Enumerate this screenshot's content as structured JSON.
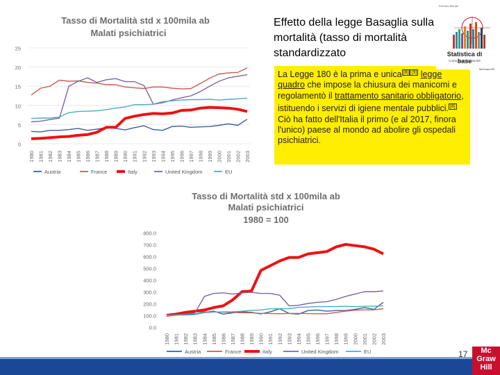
{
  "slide": {
    "title": "Effetto della legge Basaglia sulla mortalità (tasso di mortalità standardizzato",
    "page_number": "17",
    "publisher_logo": [
      "Mc",
      "Graw",
      "Hill"
    ]
  },
  "text_box": {
    "p1": "La Legge 180 è la prima e unica",
    "ref1": "[8]",
    "ref2": "[9]",
    "p2": " ",
    "link1": "legge quadro",
    "p3": " che impose la chiusura dei manicomi e regolamentò il ",
    "link2": "trattamento sanitario obbligatorio",
    "p4": ", istituendo i servizi di igiene mentale pubblici.",
    "ref3": "[8]",
    "p5": " Ciò ha fatto dell'Italia il primo (e al 2017, finora l'unico) paese al mondo ad abolire gli ospedali psichiatrici."
  },
  "book_cover": {
    "author": "Ferrucio Monali",
    "title": "Statistica di base",
    "subtitle": "Come, quando, perché",
    "publisher": "McGraw-Hill"
  },
  "colors": {
    "Austria": "#3a5f9a",
    "France": "#cf5a4d",
    "Italy": "#ee1111",
    "United Kingdom": "#8064a2",
    "EU": "#4bacc6",
    "yellow": "#ffee00",
    "footer": "#1a4796"
  },
  "chart_data": [
    {
      "type": "line",
      "title": "Tasso di Mortalità std x 100mila ab",
      "subtitle": "Malati psichiatrici",
      "xlabel": "",
      "ylabel": "",
      "ylim": [
        0,
        25
      ],
      "yticks": [
        0,
        5,
        10,
        15,
        20,
        25
      ],
      "x": [
        "1980",
        "1981",
        "1982",
        "1983",
        "1984",
        "1985",
        "1986",
        "1987",
        "1988",
        "1989",
        "1990",
        "1991",
        "1992",
        "1993",
        "1994",
        "1995",
        "1996",
        "1997",
        "1998",
        "1999",
        "2000",
        "2001",
        "2002",
        "2003"
      ],
      "series": [
        {
          "name": "Austria",
          "values": [
            3.2,
            3.1,
            3.5,
            3.5,
            3.7,
            4.0,
            3.5,
            3.8,
            4.2,
            4.0,
            3.6,
            4.2,
            4.7,
            3.7,
            3.5,
            4.5,
            4.6,
            4.3,
            4.4,
            4.5,
            4.8,
            5.2,
            4.8,
            6.4
          ]
        },
        {
          "name": "France",
          "values": [
            12.7,
            14.5,
            15.0,
            16.6,
            16.3,
            16.4,
            16.0,
            15.8,
            15.4,
            15.4,
            14.8,
            14.6,
            14.4,
            14.8,
            14.8,
            14.5,
            14.3,
            14.4,
            15.7,
            17.1,
            18.2,
            18.5,
            18.6,
            19.8
          ]
        },
        {
          "name": "Italy",
          "values": [
            1.3,
            1.4,
            1.6,
            1.8,
            1.9,
            2.2,
            2.4,
            3.0,
            4.3,
            4.3,
            6.6,
            7.2,
            7.6,
            7.9,
            7.8,
            8.0,
            8.7,
            8.8,
            9.3,
            9.5,
            9.4,
            9.3,
            9.0,
            8.4
          ]
        },
        {
          "name": "United Kingdom",
          "values": [
            5.7,
            5.9,
            6.3,
            6.7,
            15.0,
            16.3,
            17.2,
            16.0,
            16.7,
            17.0,
            16.2,
            16.2,
            15.2,
            10.3,
            10.7,
            11.4,
            12.0,
            12.5,
            13.6,
            15.0,
            16.3,
            17.2,
            17.6,
            18.0
          ]
        },
        {
          "name": "EU",
          "values": [
            6.6,
            6.7,
            6.7,
            7.0,
            8.1,
            8.4,
            8.5,
            8.6,
            8.9,
            9.3,
            9.6,
            10.2,
            10.2,
            10.3,
            11.0,
            11.2,
            11.4,
            11.5,
            11.5,
            11.6,
            11.4,
            11.6,
            11.7,
            11.9
          ]
        }
      ],
      "legend": "bottom"
    },
    {
      "type": "line",
      "title": "Tasso di Mortalità std x 100mila ab",
      "subtitle": "Malati psichiatrici",
      "subtitle2": "1980 = 100",
      "xlabel": "",
      "ylabel": "",
      "ylim": [
        0,
        800
      ],
      "yticks": [
        "0.0",
        "100.0",
        "200.0",
        "300.0",
        "400.0",
        "500.0",
        "600.0",
        "700.0",
        "800.0"
      ],
      "x": [
        "1980",
        "1981",
        "1982",
        "1983",
        "1984",
        "1985",
        "1986",
        "1987",
        "1988",
        "1989",
        "1990",
        "1991",
        "1992",
        "1993",
        "1994",
        "1995",
        "1996",
        "1997",
        "1998",
        "1999",
        "2000",
        "2001",
        "2002",
        "2003"
      ],
      "series": [
        {
          "name": "Austria",
          "values": [
            100,
            100,
            110,
            110,
            125,
            135,
            110,
            120,
            130,
            125,
            112,
            130,
            155,
            115,
            110,
            140,
            145,
            135,
            140,
            140,
            150,
            165,
            150,
            210
          ]
        },
        {
          "name": "France",
          "values": [
            100,
            114,
            118,
            130,
            128,
            129,
            126,
            124,
            121,
            121,
            116,
            115,
            113,
            116,
            116,
            114,
            113,
            113,
            124,
            135,
            143,
            146,
            146,
            156
          ]
        },
        {
          "name": "Italy",
          "values": [
            100,
            110,
            125,
            135,
            145,
            165,
            180,
            230,
            300,
            305,
            480,
            520,
            560,
            590,
            590,
            620,
            630,
            640,
            680,
            700,
            690,
            680,
            660,
            620
          ]
        },
        {
          "name": "United Kingdom",
          "values": [
            100,
            103,
            110,
            120,
            260,
            285,
            290,
            280,
            290,
            295,
            285,
            285,
            270,
            180,
            185,
            200,
            210,
            215,
            235,
            260,
            280,
            300,
            300,
            305
          ]
        },
        {
          "name": "EU",
          "values": [
            100,
            102,
            102,
            106,
            122,
            127,
            129,
            130,
            135,
            141,
            145,
            155,
            155,
            156,
            167,
            170,
            173,
            174,
            174,
            176,
            173,
            176,
            177,
            180
          ]
        }
      ],
      "legend": "bottom"
    }
  ]
}
